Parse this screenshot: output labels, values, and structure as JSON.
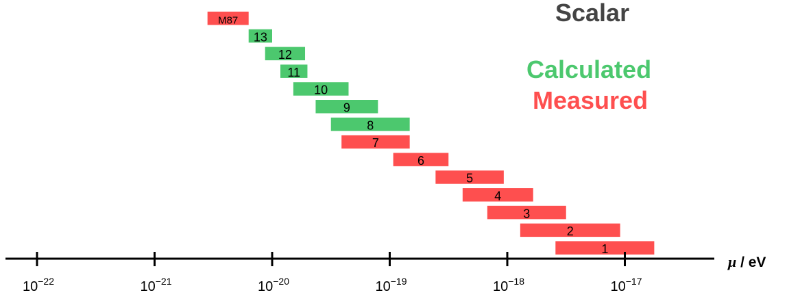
{
  "chart_data": {
    "type": "range-bar",
    "title": "Scalar",
    "xlabel_symbol": "μ",
    "xlabel_unit": " / eV",
    "xscale": "log",
    "xlim_exponents": [
      -22.25,
      -16.25
    ],
    "ticks": [
      {
        "base": "10",
        "exp": "−22"
      },
      {
        "base": "10",
        "exp": "−21"
      },
      {
        "base": "10",
        "exp": "−20"
      },
      {
        "base": "10",
        "exp": "−19"
      },
      {
        "base": "10",
        "exp": "−18"
      },
      {
        "base": "10",
        "exp": "−17"
      }
    ],
    "tick_exponents": [
      -22,
      -21,
      -20,
      -19,
      -18,
      -17
    ],
    "legend": [
      {
        "label": "Calculated",
        "color": "#4cc86e"
      },
      {
        "label": "Measured",
        "color": "#fe4f4f"
      }
    ],
    "colors": {
      "Calculated": "#4cc86e",
      "Measured": "#fe4f4f",
      "title": "#444444",
      "axis": "#000000"
    },
    "bars": [
      {
        "label": "M87",
        "kind": "Measured",
        "lo": -20.55,
        "hi": -20.2
      },
      {
        "label": "13",
        "kind": "Calculated",
        "lo": -20.2,
        "hi": -20.0
      },
      {
        "label": "12",
        "kind": "Calculated",
        "lo": -20.06,
        "hi": -19.72
      },
      {
        "label": "11",
        "kind": "Calculated",
        "lo": -19.93,
        "hi": -19.7
      },
      {
        "label": "10",
        "kind": "Calculated",
        "lo": -19.82,
        "hi": -19.35
      },
      {
        "label": "9",
        "kind": "Calculated",
        "lo": -19.63,
        "hi": -19.1
      },
      {
        "label": "8",
        "kind": "Calculated",
        "lo": -19.5,
        "hi": -18.83
      },
      {
        "label": "7",
        "kind": "Measured",
        "lo": -19.41,
        "hi": -18.83
      },
      {
        "label": "6",
        "kind": "Measured",
        "lo": -18.97,
        "hi": -18.5
      },
      {
        "label": "5",
        "kind": "Measured",
        "lo": -18.61,
        "hi": -18.03
      },
      {
        "label": "4",
        "kind": "Measured",
        "lo": -18.38,
        "hi": -17.78
      },
      {
        "label": "3",
        "kind": "Measured",
        "lo": -18.17,
        "hi": -17.5
      },
      {
        "label": "2",
        "kind": "Measured",
        "lo": -17.89,
        "hi": -17.04
      },
      {
        "label": "1",
        "kind": "Measured",
        "lo": -17.59,
        "hi": -16.75
      }
    ]
  }
}
